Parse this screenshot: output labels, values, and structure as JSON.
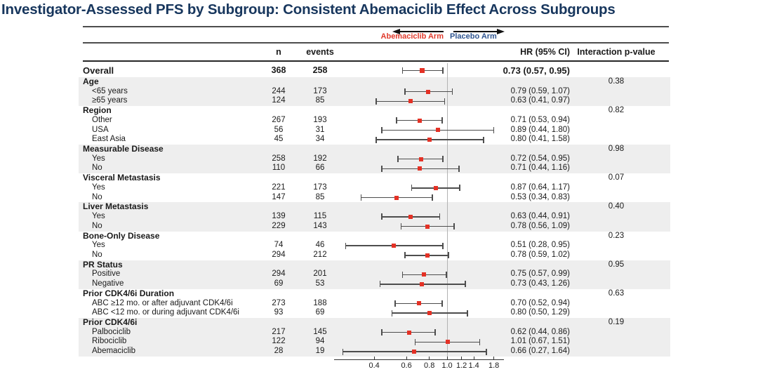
{
  "title": "Investigator-Assessed PFS by Subgroup: Consistent Abemaciclib Effect Across Subgroups",
  "colors": {
    "title": "#17365d",
    "abemaciclib_arm": "#e0392b",
    "placebo_arm": "#2e5490",
    "marker": "#e43125",
    "error_bar": "#4d4d4d",
    "shaded_band": "#eeeeee",
    "ref_line": "#b3b3b3"
  },
  "arm_labels": {
    "left": "Abemaciclib Arm",
    "right": "Placebo Arm"
  },
  "columns": {
    "n": "n",
    "events": "events",
    "hr": "HR (95% CI)",
    "p": "Interaction p-value"
  },
  "chart_data": {
    "type": "forest",
    "x_scale": "log",
    "ref_line": 1.0,
    "axis_ticks": [
      0.4,
      0.6,
      0.8,
      1.0,
      1.2,
      1.4,
      1.8
    ],
    "axis_range": [
      0.25,
      1.95
    ],
    "rows": [
      {
        "kind": "overall",
        "label": "Overall",
        "n": "368",
        "events": "258",
        "hr": 0.73,
        "lo": 0.57,
        "hi": 0.95,
        "hr_text": "0.73 (0.57, 0.95)"
      },
      {
        "kind": "group",
        "label": "Age",
        "p": "0.38",
        "shaded": true
      },
      {
        "kind": "item",
        "label": "<65 years",
        "n": "244",
        "events": "173",
        "hr": 0.79,
        "lo": 0.59,
        "hi": 1.07,
        "hr_text": "0.79 (0.59, 1.07)"
      },
      {
        "kind": "item",
        "label": "≥65 years",
        "n": "124",
        "events": "85",
        "hr": 0.63,
        "lo": 0.41,
        "hi": 0.97,
        "hr_text": "0.63 (0.41, 0.97)"
      },
      {
        "kind": "group",
        "label": "Region",
        "p": "0.82",
        "shaded": false
      },
      {
        "kind": "item",
        "label": "Other",
        "n": "267",
        "events": "193",
        "hr": 0.71,
        "lo": 0.53,
        "hi": 0.94,
        "hr_text": "0.71 (0.53, 0.94)"
      },
      {
        "kind": "item",
        "label": "USA",
        "n": "56",
        "events": "31",
        "hr": 0.89,
        "lo": 0.44,
        "hi": 1.8,
        "hr_text": "0.89 (0.44, 1.80)"
      },
      {
        "kind": "item",
        "label": "East Asia",
        "n": "45",
        "events": "34",
        "hr": 0.8,
        "lo": 0.41,
        "hi": 1.58,
        "hr_text": "0.80 (0.41, 1.58)"
      },
      {
        "kind": "group",
        "label": "Measurable Disease",
        "p": "0.98",
        "shaded": true
      },
      {
        "kind": "item",
        "label": "Yes",
        "n": "258",
        "events": "192",
        "hr": 0.72,
        "lo": 0.54,
        "hi": 0.95,
        "hr_text": "0.72 (0.54, 0.95)"
      },
      {
        "kind": "item",
        "label": "No",
        "n": "110",
        "events": "66",
        "hr": 0.71,
        "lo": 0.44,
        "hi": 1.16,
        "hr_text": "0.71 (0.44, 1.16)"
      },
      {
        "kind": "group",
        "label": "Visceral Metastasis",
        "p": "0.07",
        "shaded": false
      },
      {
        "kind": "item",
        "label": "Yes",
        "n": "221",
        "events": "173",
        "hr": 0.87,
        "lo": 0.64,
        "hi": 1.17,
        "hr_text": "0.87 (0.64, 1.17)"
      },
      {
        "kind": "item",
        "label": "No",
        "n": "147",
        "events": "85",
        "hr": 0.53,
        "lo": 0.34,
        "hi": 0.83,
        "hr_text": "0.53 (0.34, 0.83)"
      },
      {
        "kind": "group",
        "label": "Liver Metastasis",
        "p": "0.40",
        "shaded": true
      },
      {
        "kind": "item",
        "label": "Yes",
        "n": "139",
        "events": "115",
        "hr": 0.63,
        "lo": 0.44,
        "hi": 0.91,
        "hr_text": "0.63 (0.44, 0.91)"
      },
      {
        "kind": "item",
        "label": "No",
        "n": "229",
        "events": "143",
        "hr": 0.78,
        "lo": 0.56,
        "hi": 1.09,
        "hr_text": "0.78 (0.56, 1.09)"
      },
      {
        "kind": "group",
        "label": "Bone-Only Disease",
        "p": "0.23",
        "shaded": false
      },
      {
        "kind": "item",
        "label": "Yes",
        "n": "74",
        "events": "46",
        "hr": 0.51,
        "lo": 0.28,
        "hi": 0.95,
        "hr_text": "0.51 (0.28, 0.95)"
      },
      {
        "kind": "item",
        "label": "No",
        "n": "294",
        "events": "212",
        "hr": 0.78,
        "lo": 0.59,
        "hi": 1.02,
        "hr_text": "0.78 (0.59, 1.02)"
      },
      {
        "kind": "group",
        "label": "PR Status",
        "p": "0.95",
        "shaded": true
      },
      {
        "kind": "item",
        "label": "Positive",
        "n": "294",
        "events": "201",
        "hr": 0.75,
        "lo": 0.57,
        "hi": 0.99,
        "hr_text": "0.75 (0.57, 0.99)"
      },
      {
        "kind": "item",
        "label": "Negative",
        "n": "69",
        "events": "53",
        "hr": 0.73,
        "lo": 0.43,
        "hi": 1.26,
        "hr_text": "0.73 (0.43, 1.26)"
      },
      {
        "kind": "group",
        "label": "Prior CDK4/6i Duration",
        "p": "0.63",
        "shaded": false
      },
      {
        "kind": "item",
        "label": "ABC ≥12 mo. or after adjuvant CDK4/6i",
        "n": "273",
        "events": "188",
        "hr": 0.7,
        "lo": 0.52,
        "hi": 0.94,
        "hr_text": "0.70 (0.52, 0.94)"
      },
      {
        "kind": "item",
        "label": "ABC <12 mo. or during adjuvant CDK4/6i",
        "n": "93",
        "events": "69",
        "hr": 0.8,
        "lo": 0.5,
        "hi": 1.29,
        "hr_text": "0.80 (0.50, 1.29)"
      },
      {
        "kind": "group",
        "label": "Prior CDK4/6i",
        "p": "0.19",
        "shaded": true
      },
      {
        "kind": "item",
        "label": "Palbociclib",
        "n": "217",
        "events": "145",
        "hr": 0.62,
        "lo": 0.44,
        "hi": 0.86,
        "hr_text": "0.62 (0.44, 0.86)"
      },
      {
        "kind": "item",
        "label": "Ribociclib",
        "n": "122",
        "events": "94",
        "hr": 1.01,
        "lo": 0.67,
        "hi": 1.51,
        "hr_text": "1.01 (0.67, 1.51)"
      },
      {
        "kind": "item",
        "label": "Abemaciclib",
        "n": "28",
        "events": "19",
        "hr": 0.66,
        "lo": 0.27,
        "hi": 1.64,
        "hr_text": "0.66 (0.27, 1.64)"
      }
    ]
  }
}
